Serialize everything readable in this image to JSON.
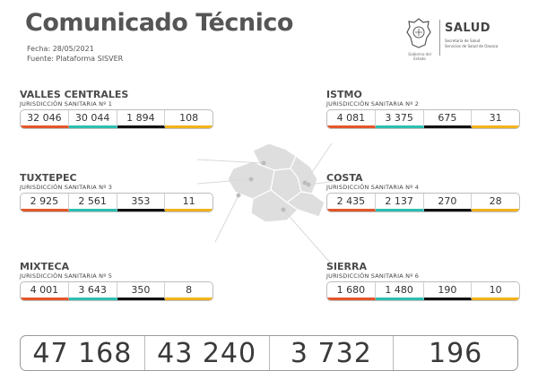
{
  "header": {
    "title": "Comunicado Técnico",
    "date": "Fecha: 28/05/2021",
    "source": "Fuente: Plataforma SISVER"
  },
  "logo": {
    "seal_caption": "Gobierno del Estado",
    "brand": "SALUD",
    "sub_line1": "Secretaría de Salud",
    "sub_line2": "Servicios de Salud de Oaxaca"
  },
  "colors": {
    "stat1": "#e3562a",
    "stat2": "#2bbfb1",
    "stat3": "#111111",
    "stat4": "#f2b21b"
  },
  "regions": [
    {
      "name": "VALLES CENTRALES",
      "jurisdiction": "JURISDICCIÓN SANITARIA Nº 1",
      "values": [
        "32 046",
        "30 044",
        "1 894",
        "108"
      ]
    },
    {
      "name": "ISTMO",
      "jurisdiction": "JURISDICCIÓN SANITARIA Nº 2",
      "values": [
        "4 081",
        "3 375",
        "675",
        "31"
      ]
    },
    {
      "name": "TUXTEPEC",
      "jurisdiction": "JURISDICCIÓN SANITARIA Nº 3",
      "values": [
        "2 925",
        "2 561",
        "353",
        "11"
      ]
    },
    {
      "name": "COSTA",
      "jurisdiction": "JURISDICCIÓN SANITARIA Nº 4",
      "values": [
        "2 435",
        "2 137",
        "270",
        "28"
      ]
    },
    {
      "name": "MIXTECA",
      "jurisdiction": "JURISDICCIÓN SANITARIA Nº 5",
      "values": [
        "4 001",
        "3 643",
        "350",
        "8"
      ]
    },
    {
      "name": "SIERRA",
      "jurisdiction": "JURISDICCIÓN SANITARIA Nº 6",
      "values": [
        "1 680",
        "1 480",
        "190",
        "10"
      ]
    }
  ],
  "totals": [
    "47 168",
    "43 240",
    "3 732",
    "196"
  ]
}
